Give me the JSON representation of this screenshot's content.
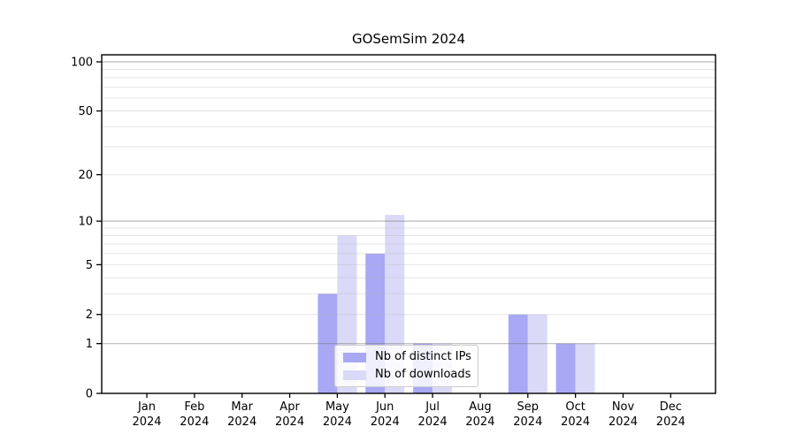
{
  "chart_data": {
    "type": "bar",
    "title": "GOSemSim 2024",
    "categories": [
      "Jan",
      "Feb",
      "Mar",
      "Apr",
      "May",
      "Jun",
      "Jul",
      "Aug",
      "Sep",
      "Oct",
      "Nov",
      "Dec"
    ],
    "category_year": "2024",
    "series": [
      {
        "name": "Nb of distinct IPs",
        "color": "#a8a8f5",
        "values": [
          0,
          0,
          0,
          0,
          3,
          6,
          1,
          0,
          2,
          1,
          0,
          0
        ]
      },
      {
        "name": "Nb of downloads",
        "color": "#dadaf8",
        "values": [
          0,
          0,
          0,
          0,
          8,
          11,
          1,
          0,
          2,
          1,
          0,
          0
        ]
      }
    ],
    "xlabel": "",
    "ylabel": "",
    "yscale": "log1p",
    "ylim": [
      0,
      110
    ],
    "yticks": [
      0,
      1,
      2,
      5,
      10,
      20,
      50,
      100
    ],
    "minor_gridlines": [
      2,
      3,
      4,
      5,
      6,
      7,
      8,
      9,
      20,
      30,
      40,
      50,
      60,
      70,
      80,
      90
    ],
    "emphasized_gridlines": [
      1,
      10,
      100
    ],
    "grid": "horizontal, drawn over bars",
    "legend_position": "bottom-center inside plot",
    "colors": {
      "spine": "#000000",
      "minor_grid": "#ebebeb",
      "major_grid": "#c0c0c0",
      "legend_border": "#cccccc"
    }
  }
}
